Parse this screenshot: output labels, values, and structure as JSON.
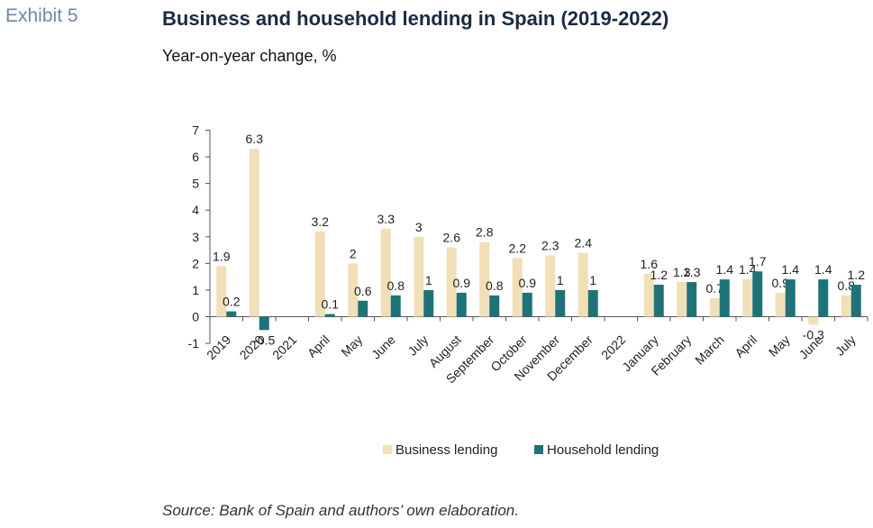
{
  "exhibit_label": "Exhibit 5",
  "source": "Source: Bank of Spain and authors’ own elaboration.",
  "colors": {
    "business": "#f1dfb8",
    "household": "#1f7378"
  },
  "chart_data": {
    "type": "bar",
    "title": "Business and household lending in Spain (2019-2022)",
    "subtitle": "Year-on-year change, %",
    "xlabel": "",
    "ylabel": "",
    "ylim": [
      -1,
      7
    ],
    "yticks": [
      -1,
      0,
      1,
      2,
      3,
      4,
      5,
      6,
      7
    ],
    "legend": "bottom",
    "categories": [
      "2019",
      "2020",
      "2021",
      "April",
      "May",
      "June",
      "July",
      "August",
      "September",
      "October",
      "November",
      "December",
      "2022",
      "January",
      "February",
      "March",
      "April",
      "May",
      "June",
      "July"
    ],
    "series": [
      {
        "name": "Business lending",
        "values": [
          1.9,
          6.3,
          null,
          3.2,
          2,
          3.3,
          3,
          2.6,
          2.8,
          2.2,
          2.3,
          2.4,
          null,
          1.6,
          1.3,
          0.7,
          1.4,
          0.9,
          -0.3,
          0.8
        ]
      },
      {
        "name": "Household lending",
        "values": [
          0.2,
          -0.5,
          null,
          0.1,
          0.6,
          0.8,
          1,
          0.9,
          0.8,
          0.9,
          1,
          1,
          null,
          1.2,
          1.3,
          1.4,
          1.7,
          1.4,
          1.4,
          1.2
        ]
      }
    ]
  }
}
